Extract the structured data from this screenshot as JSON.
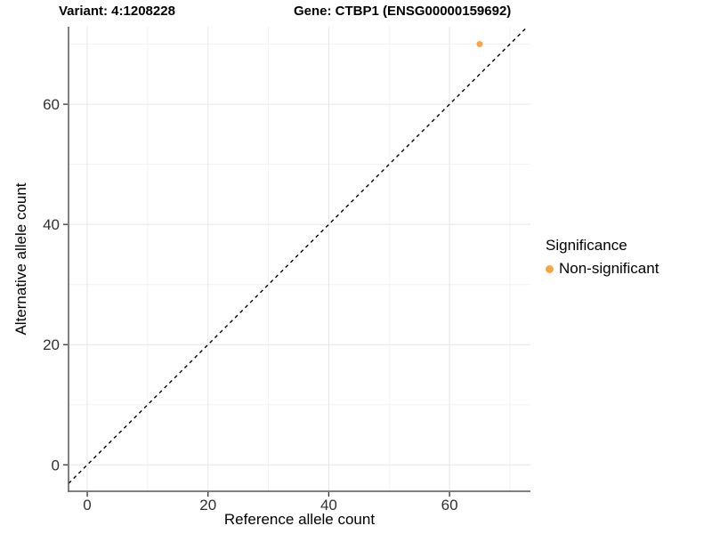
{
  "header": {
    "title_left": "Variant: 4:1208228",
    "title_right": "Gene: CTBP1 (ENSG00000159692)"
  },
  "colors": {
    "point": "#F9A642",
    "axis_line": "#565656",
    "tick_mark": "#333333",
    "tick_text": "#303030",
    "grid_major": "#e6e6e6",
    "grid_minor": "#f2f2f2",
    "identity_line": "#000000",
    "background": "#ffffff"
  },
  "chart_data": {
    "type": "scatter",
    "title_left": "Variant: 4:1208228",
    "title_right": "Gene: CTBP1 (ENSG00000159692)",
    "xlabel": "Reference allele count",
    "ylabel": "Alternative allele count",
    "xlim": [
      -3.1,
      73.4
    ],
    "ylim": [
      -4.4,
      72.9
    ],
    "x_major_ticks": [
      0,
      20,
      40,
      60
    ],
    "y_major_ticks": [
      0,
      20,
      40,
      60
    ],
    "x_minor_gridlines": [
      10,
      30,
      50,
      70
    ],
    "y_minor_gridlines": [
      10,
      30,
      50,
      70
    ],
    "grid": "major+minor, light gray on white panel",
    "identity_line": {
      "slope": 1,
      "intercept": 0,
      "style": "dashed",
      "color": "#000000"
    },
    "legend": {
      "title": "Significance",
      "position": "right",
      "items": [
        {
          "label": "Non-significant",
          "color": "#F9A642"
        }
      ]
    },
    "series": [
      {
        "name": "Non-significant",
        "color": "#F9A642",
        "points": [
          {
            "x": 65,
            "y": 70
          }
        ]
      }
    ]
  }
}
